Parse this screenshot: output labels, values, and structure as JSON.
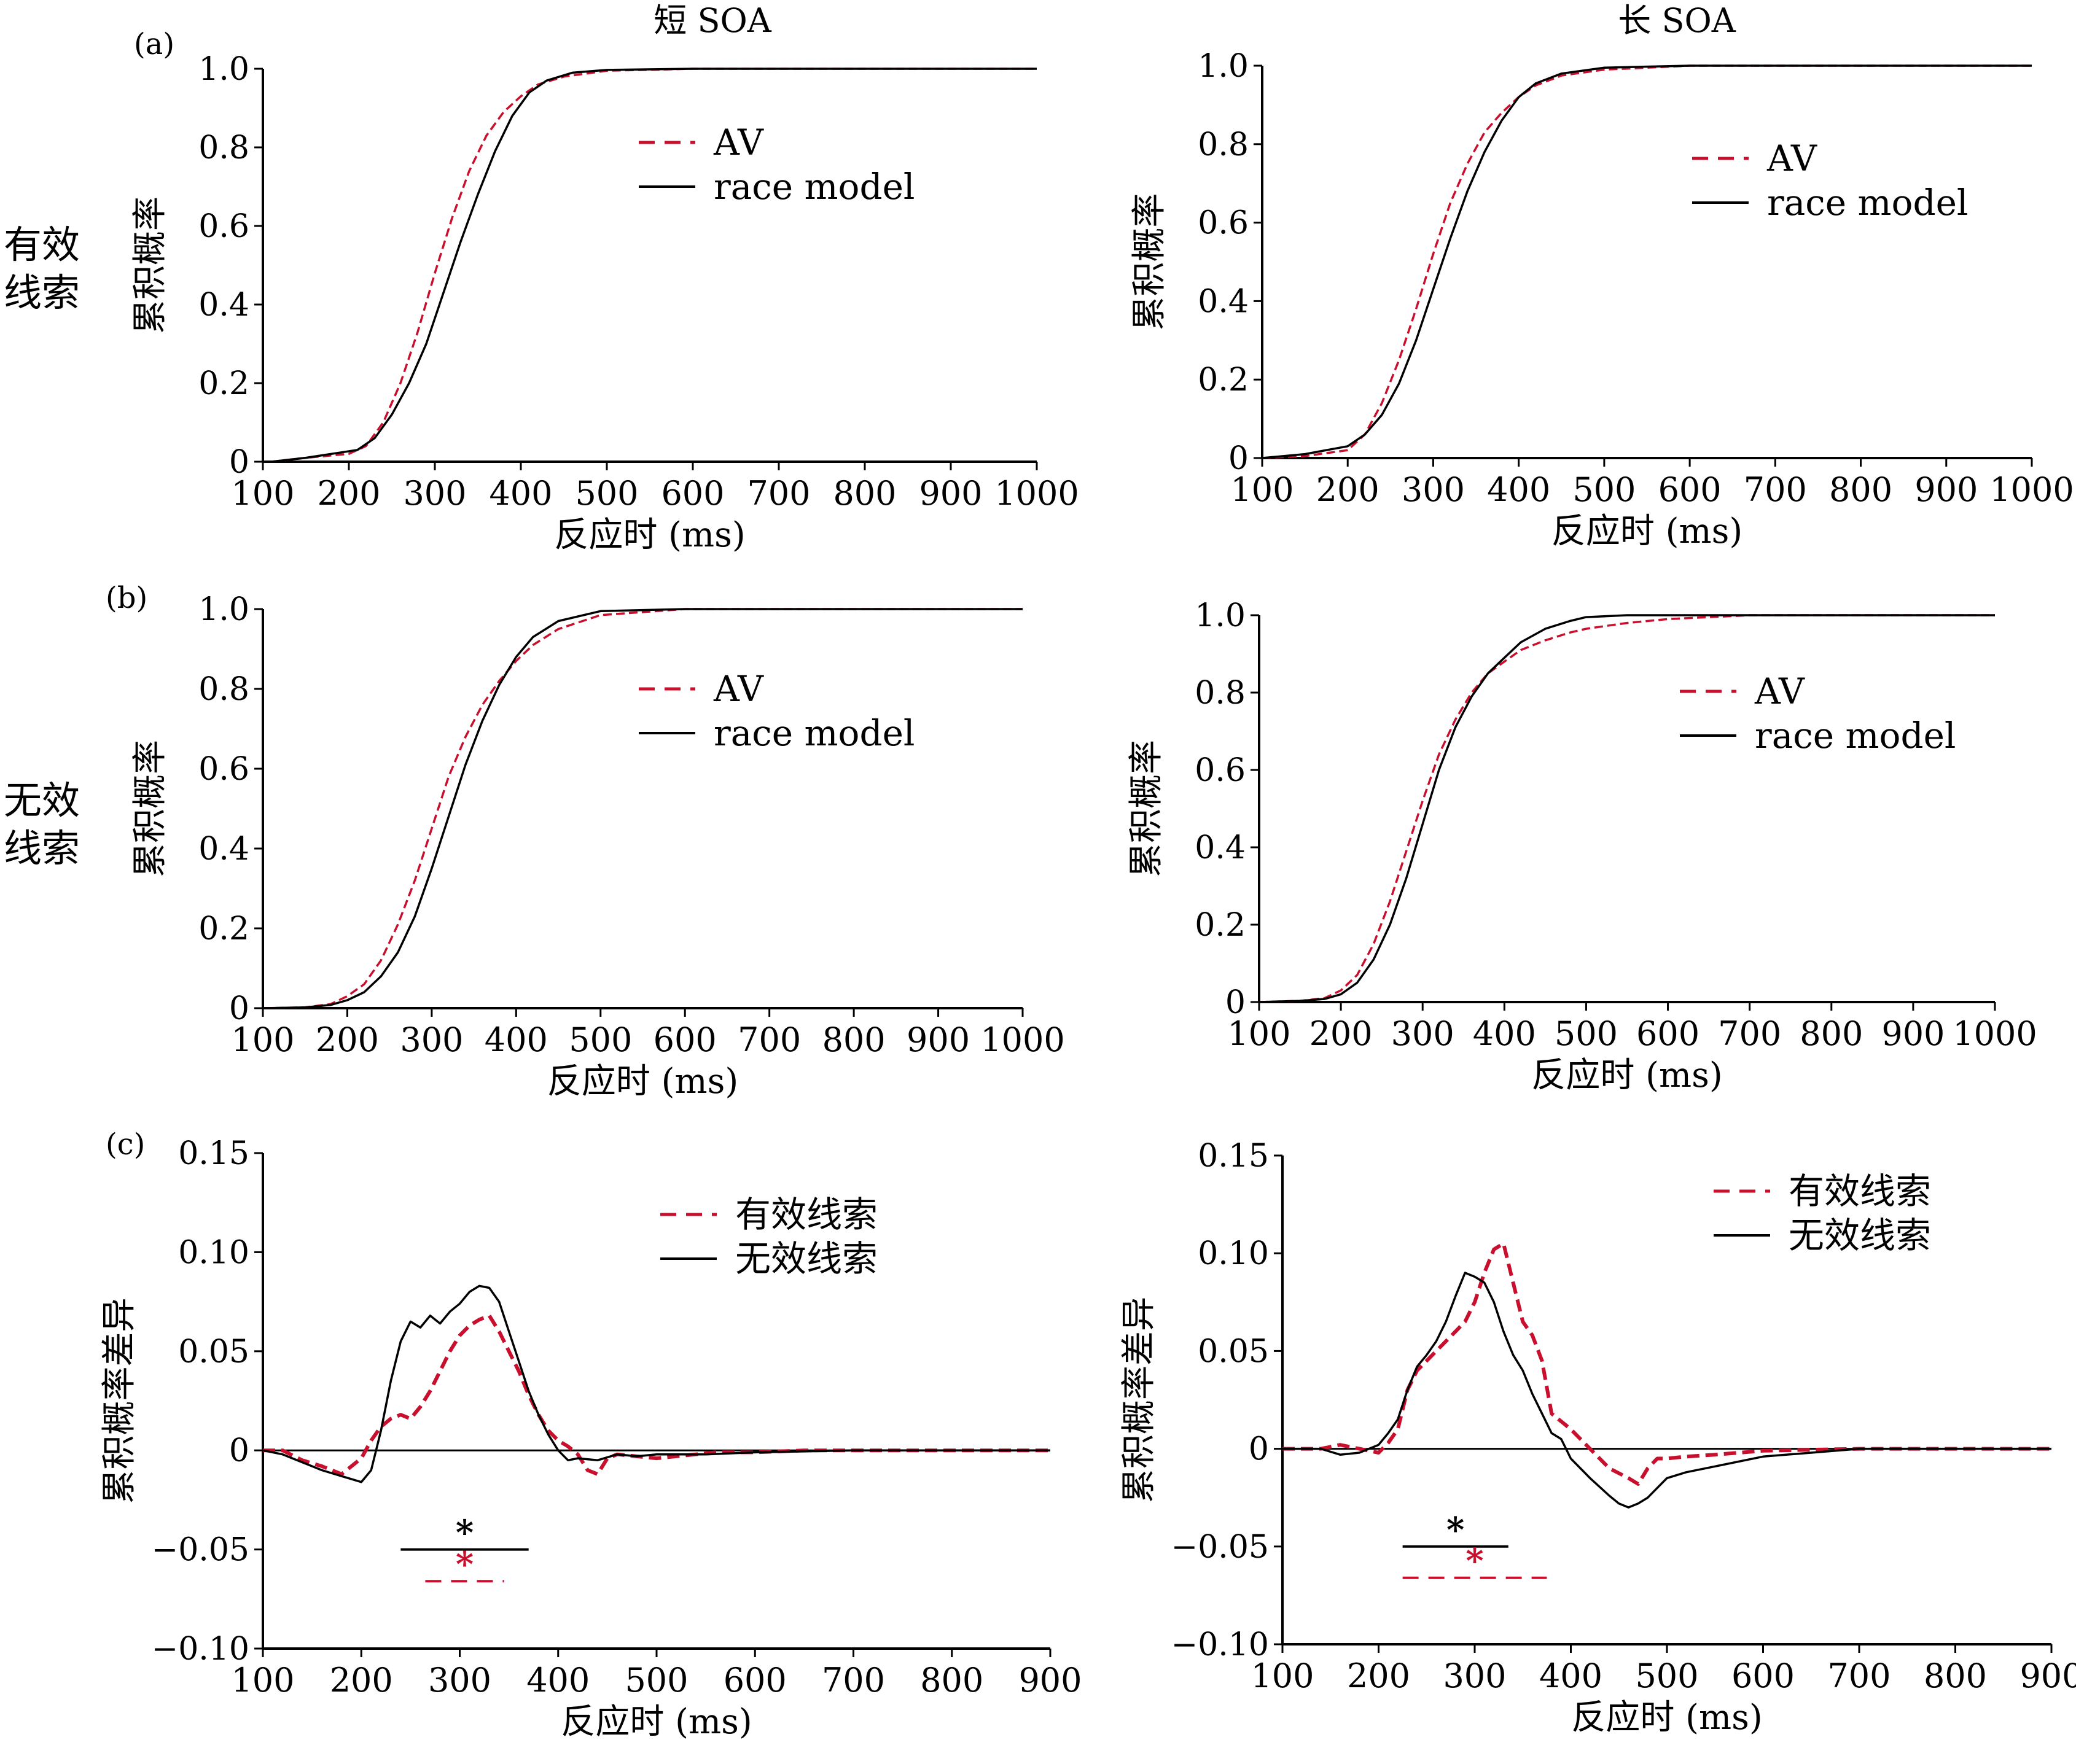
{
  "figure": {
    "columns": [
      "短 SOA",
      "长 SOA"
    ],
    "rows": [
      "有效\n线索",
      "无效\n线索"
    ],
    "panel_letters": [
      "(a)",
      "(b)",
      "(c)"
    ],
    "colors": {
      "av": "#c8102e",
      "race": "#000000",
      "valid": "#c8102e",
      "invalid": "#000000",
      "axis": "#000000"
    }
  },
  "chart_data": [
    {
      "id": "a-short",
      "type": "line",
      "panel_label": "(a)",
      "title": "短 SOA",
      "xlabel": "反应时 (ms)",
      "ylabel": "累积概率",
      "xlim": [
        100,
        1000
      ],
      "ylim": [
        0,
        1
      ],
      "xticks": [
        100,
        200,
        300,
        400,
        500,
        600,
        700,
        800,
        900,
        1000
      ],
      "yticks": [
        0,
        0.2,
        0.4,
        0.6,
        0.8,
        1.0
      ],
      "ytick_labels": [
        "0",
        "0.2",
        "0.4",
        "0.6",
        "0.8",
        "1.0"
      ],
      "legend": "upper-middle",
      "series": [
        {
          "name": "AV",
          "style": "dashed",
          "color": "#c8102e",
          "x": [
            110,
            150,
            200,
            220,
            240,
            260,
            280,
            300,
            320,
            340,
            360,
            380,
            400,
            420,
            450,
            500,
            600,
            700,
            800,
            900,
            1000
          ],
          "y": [
            0,
            0.01,
            0.02,
            0.04,
            0.1,
            0.2,
            0.33,
            0.48,
            0.62,
            0.74,
            0.83,
            0.89,
            0.93,
            0.96,
            0.98,
            0.995,
            1,
            1,
            1,
            1,
            1
          ]
        },
        {
          "name": "race model",
          "style": "solid",
          "color": "#000000",
          "x": [
            110,
            150,
            180,
            210,
            230,
            250,
            270,
            290,
            310,
            330,
            350,
            370,
            390,
            410,
            430,
            460,
            500,
            600,
            700,
            800,
            900,
            1000
          ],
          "y": [
            0,
            0.01,
            0.02,
            0.03,
            0.06,
            0.12,
            0.2,
            0.3,
            0.43,
            0.56,
            0.68,
            0.79,
            0.88,
            0.94,
            0.97,
            0.99,
            0.997,
            1,
            1,
            1,
            1,
            1
          ]
        }
      ]
    },
    {
      "id": "a-long",
      "type": "line",
      "title": "长 SOA",
      "xlabel": "反应时 (ms)",
      "ylabel": "累积概率",
      "xlim": [
        100,
        1000
      ],
      "ylim": [
        0,
        1
      ],
      "xticks": [
        100,
        200,
        300,
        400,
        500,
        600,
        700,
        800,
        900,
        1000
      ],
      "yticks": [
        0,
        0.2,
        0.4,
        0.6,
        0.8,
        1.0
      ],
      "ytick_labels": [
        "0",
        "0.2",
        "0.4",
        "0.6",
        "0.8",
        "1.0"
      ],
      "legend": "upper-middle",
      "series": [
        {
          "name": "AV",
          "style": "dashed",
          "color": "#c8102e",
          "x": [
            100,
            150,
            200,
            220,
            240,
            260,
            280,
            300,
            320,
            340,
            360,
            380,
            400,
            420,
            450,
            500,
            600,
            700,
            800,
            900,
            1000
          ],
          "y": [
            0,
            0.005,
            0.02,
            0.06,
            0.14,
            0.25,
            0.38,
            0.52,
            0.65,
            0.75,
            0.83,
            0.88,
            0.92,
            0.95,
            0.975,
            0.99,
            1,
            1,
            1,
            1,
            1
          ]
        },
        {
          "name": "race model",
          "style": "solid",
          "color": "#000000",
          "x": [
            100,
            150,
            200,
            220,
            240,
            260,
            280,
            300,
            320,
            340,
            360,
            380,
            400,
            420,
            450,
            500,
            600,
            700,
            800,
            900,
            1000
          ],
          "y": [
            0,
            0.01,
            0.03,
            0.06,
            0.11,
            0.19,
            0.3,
            0.43,
            0.56,
            0.68,
            0.78,
            0.86,
            0.92,
            0.955,
            0.98,
            0.995,
            1,
            1,
            1,
            1,
            1
          ]
        }
      ]
    },
    {
      "id": "b-short",
      "type": "line",
      "panel_label": "(b)",
      "xlabel": "反应时 (ms)",
      "ylabel": "累积概率",
      "xlim": [
        100,
        1000
      ],
      "ylim": [
        0,
        1
      ],
      "xticks": [
        100,
        200,
        300,
        400,
        500,
        600,
        700,
        800,
        900,
        1000
      ],
      "yticks": [
        0,
        0.2,
        0.4,
        0.6,
        0.8,
        1.0
      ],
      "ytick_labels": [
        "0",
        "0.2",
        "0.4",
        "0.6",
        "0.8",
        "1.0"
      ],
      "legend": "upper-middle",
      "series": [
        {
          "name": "AV",
          "style": "dashed",
          "color": "#c8102e",
          "x": [
            100,
            150,
            180,
            200,
            220,
            240,
            260,
            280,
            300,
            320,
            340,
            360,
            380,
            400,
            420,
            450,
            500,
            600,
            700,
            800,
            900,
            1000
          ],
          "y": [
            0,
            0.002,
            0.01,
            0.03,
            0.06,
            0.12,
            0.21,
            0.32,
            0.45,
            0.58,
            0.68,
            0.76,
            0.82,
            0.87,
            0.91,
            0.95,
            0.985,
            1,
            1,
            1,
            1,
            1
          ]
        },
        {
          "name": "race model",
          "style": "solid",
          "color": "#000000",
          "x": [
            100,
            150,
            180,
            200,
            220,
            240,
            260,
            280,
            300,
            320,
            340,
            360,
            380,
            400,
            420,
            450,
            500,
            600,
            700,
            800,
            900,
            1000
          ],
          "y": [
            0,
            0.002,
            0.008,
            0.02,
            0.04,
            0.08,
            0.14,
            0.23,
            0.35,
            0.48,
            0.61,
            0.72,
            0.81,
            0.88,
            0.93,
            0.97,
            0.995,
            1,
            1,
            1,
            1,
            1
          ]
        }
      ]
    },
    {
      "id": "b-long",
      "type": "line",
      "xlabel": "反应时 (ms)",
      "ylabel": "累积概率",
      "xlim": [
        100,
        1000
      ],
      "ylim": [
        0,
        1
      ],
      "xticks": [
        100,
        200,
        300,
        400,
        500,
        600,
        700,
        800,
        900,
        1000
      ],
      "yticks": [
        0,
        0.2,
        0.4,
        0.6,
        0.8,
        1.0
      ],
      "ytick_labels": [
        "0",
        "0.2",
        "0.4",
        "0.6",
        "0.8",
        "1.0"
      ],
      "legend": "upper-middle",
      "series": [
        {
          "name": "AV",
          "style": "dashed",
          "color": "#c8102e",
          "x": [
            100,
            150,
            180,
            200,
            220,
            240,
            260,
            280,
            300,
            320,
            340,
            360,
            380,
            400,
            420,
            450,
            480,
            500,
            550,
            600,
            700,
            800,
            900,
            1000
          ],
          "y": [
            0,
            0.003,
            0.01,
            0.03,
            0.07,
            0.15,
            0.26,
            0.39,
            0.52,
            0.64,
            0.73,
            0.8,
            0.85,
            0.88,
            0.91,
            0.935,
            0.955,
            0.965,
            0.98,
            0.99,
            1,
            1,
            1,
            1
          ]
        },
        {
          "name": "race model",
          "style": "solid",
          "color": "#000000",
          "x": [
            100,
            150,
            180,
            200,
            220,
            240,
            260,
            280,
            300,
            320,
            340,
            360,
            380,
            400,
            420,
            450,
            480,
            500,
            550,
            600,
            700,
            800,
            900,
            1000
          ],
          "y": [
            0,
            0.003,
            0.008,
            0.02,
            0.05,
            0.11,
            0.2,
            0.32,
            0.46,
            0.6,
            0.71,
            0.79,
            0.85,
            0.89,
            0.93,
            0.965,
            0.985,
            0.995,
            1,
            1,
            1,
            1,
            1,
            1
          ]
        }
      ]
    },
    {
      "id": "c-short",
      "type": "line",
      "panel_label": "(c)",
      "xlabel": "反应时 (ms)",
      "ylabel": "累积概率差异",
      "xlim": [
        100,
        900
      ],
      "ylim": [
        -0.1,
        0.15
      ],
      "xticks": [
        100,
        200,
        300,
        400,
        500,
        600,
        700,
        800,
        900
      ],
      "yticks": [
        -0.1,
        -0.05,
        0,
        0.05,
        0.1,
        0.15
      ],
      "ytick_labels": [
        "−0.10",
        "−0.05",
        "0",
        "0.05",
        "0.10",
        "0.15"
      ],
      "legend": "upper-middle",
      "series": [
        {
          "name": "有效线索",
          "style": "dashed",
          "color": "#c8102e",
          "x": [
            100,
            120,
            140,
            160,
            180,
            200,
            210,
            220,
            230,
            240,
            250,
            260,
            270,
            280,
            290,
            300,
            310,
            320,
            330,
            340,
            350,
            360,
            370,
            380,
            390,
            400,
            410,
            420,
            430,
            440,
            450,
            460,
            480,
            500,
            520,
            540,
            560,
            600,
            650,
            700,
            800,
            900
          ],
          "y": [
            0,
            0,
            -0.005,
            -0.008,
            -0.012,
            -0.004,
            0.005,
            0.012,
            0.016,
            0.018,
            0.016,
            0.022,
            0.03,
            0.04,
            0.05,
            0.058,
            0.063,
            0.066,
            0.068,
            0.06,
            0.05,
            0.04,
            0.028,
            0.018,
            0.01,
            0.005,
            0.002,
            -0.002,
            -0.01,
            -0.012,
            -0.004,
            -0.002,
            -0.003,
            -0.004,
            -0.003,
            -0.002,
            -0.001,
            -0.001,
            0,
            0,
            0,
            0
          ]
        },
        {
          "name": "无效线索",
          "style": "solid",
          "color": "#000000",
          "x": [
            100,
            120,
            140,
            160,
            180,
            200,
            210,
            220,
            230,
            240,
            250,
            260,
            270,
            280,
            290,
            300,
            310,
            320,
            330,
            340,
            350,
            360,
            370,
            380,
            390,
            400,
            410,
            420,
            440,
            460,
            480,
            500,
            550,
            600,
            700,
            800,
            900
          ],
          "y": [
            0,
            -0.002,
            -0.006,
            -0.01,
            -0.013,
            -0.016,
            -0.01,
            0.01,
            0.035,
            0.055,
            0.065,
            0.062,
            0.068,
            0.064,
            0.07,
            0.074,
            0.08,
            0.083,
            0.082,
            0.075,
            0.06,
            0.045,
            0.03,
            0.018,
            0.008,
            0,
            -0.005,
            -0.004,
            -0.005,
            -0.002,
            -0.003,
            -0.002,
            -0.002,
            -0.001,
            0,
            0,
            0
          ]
        }
      ],
      "annotations": [
        {
          "text": "*",
          "color": "#000000",
          "style": "solid",
          "x_from": 240,
          "x_to": 370,
          "y": -0.05
        },
        {
          "text": "*",
          "color": "#c8102e",
          "style": "dashed",
          "x_from": 265,
          "x_to": 345,
          "y": -0.066
        }
      ]
    },
    {
      "id": "c-long",
      "type": "line",
      "xlabel": "反应时 (ms)",
      "ylabel": "累积概率差异",
      "xlim": [
        100,
        900
      ],
      "ylim": [
        -0.1,
        0.15
      ],
      "xticks": [
        100,
        200,
        300,
        400,
        500,
        600,
        700,
        800,
        900
      ],
      "yticks": [
        -0.1,
        -0.05,
        0,
        0.05,
        0.1,
        0.15
      ],
      "ytick_labels": [
        "−0.10",
        "−0.05",
        "0",
        "0.05",
        "0.10",
        "0.15"
      ],
      "legend": "upper-right",
      "series": [
        {
          "name": "有效线索",
          "style": "dashed",
          "color": "#c8102e",
          "x": [
            100,
            140,
            160,
            180,
            200,
            210,
            220,
            230,
            240,
            250,
            260,
            270,
            280,
            290,
            300,
            310,
            320,
            330,
            340,
            350,
            360,
            370,
            380,
            400,
            420,
            440,
            460,
            470,
            480,
            490,
            500,
            520,
            550,
            600,
            700,
            800,
            900
          ],
          "y": [
            0,
            0,
            0.002,
            0,
            -0.002,
            0.003,
            0.01,
            0.03,
            0.04,
            0.045,
            0.05,
            0.055,
            0.06,
            0.065,
            0.075,
            0.09,
            0.102,
            0.105,
            0.085,
            0.065,
            0.058,
            0.045,
            0.018,
            0.01,
            0,
            -0.01,
            -0.015,
            -0.018,
            -0.01,
            -0.005,
            -0.005,
            -0.004,
            -0.003,
            -0.001,
            0,
            0,
            0
          ]
        },
        {
          "name": "无效线索",
          "style": "solid",
          "color": "#000000",
          "x": [
            100,
            140,
            160,
            180,
            200,
            210,
            220,
            230,
            240,
            250,
            260,
            270,
            280,
            290,
            300,
            310,
            320,
            330,
            340,
            350,
            360,
            370,
            380,
            390,
            400,
            420,
            440,
            450,
            460,
            470,
            480,
            490,
            500,
            520,
            550,
            600,
            650,
            700,
            800,
            900
          ],
          "y": [
            0,
            0,
            -0.003,
            -0.002,
            0.002,
            0.008,
            0.015,
            0.03,
            0.042,
            0.048,
            0.055,
            0.065,
            0.078,
            0.09,
            0.088,
            0.085,
            0.075,
            0.06,
            0.048,
            0.04,
            0.028,
            0.018,
            0.008,
            0.005,
            -0.005,
            -0.015,
            -0.024,
            -0.028,
            -0.03,
            -0.028,
            -0.025,
            -0.02,
            -0.015,
            -0.012,
            -0.009,
            -0.004,
            -0.002,
            0,
            0,
            0
          ]
        }
      ],
      "annotations": [
        {
          "text": "*",
          "color": "#000000",
          "style": "solid",
          "x_from": 225,
          "x_to": 335,
          "y": -0.05
        },
        {
          "text": "*",
          "color": "#c8102e",
          "style": "dashed",
          "x_from": 225,
          "x_to": 375,
          "y": -0.066
        }
      ]
    }
  ]
}
